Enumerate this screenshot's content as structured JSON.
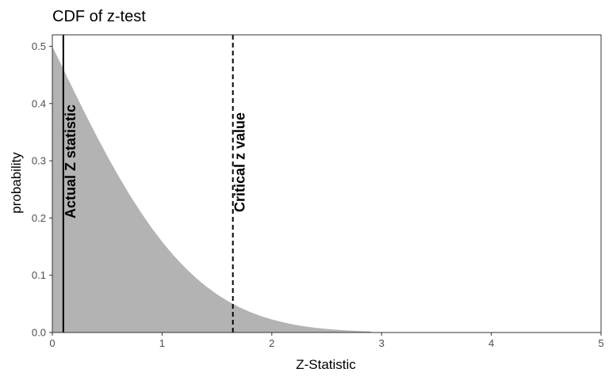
{
  "chart_data": {
    "type": "area",
    "title": "CDF of z-test",
    "xlabel": "Z-Statistic",
    "ylabel": "probability",
    "xlim": [
      0,
      5
    ],
    "ylim": [
      0,
      0.52
    ],
    "x_ticks": [
      0,
      1,
      2,
      3,
      4,
      5
    ],
    "x_tick_labels": [
      "0",
      "1",
      "2",
      "3",
      "4",
      "5"
    ],
    "y_ticks": [
      0,
      0.1,
      0.2,
      0.3,
      0.4,
      0.5
    ],
    "y_tick_labels": [
      "0.0",
      "0.1",
      "0.2",
      "0.3",
      "0.4",
      "0.5"
    ],
    "grid": false,
    "area": {
      "description_of_values": "upper tail probability 1 - Phi(z)",
      "x": [
        0,
        0.1,
        0.2,
        0.3,
        0.4,
        0.5,
        0.6,
        0.7,
        0.8,
        0.9,
        1.0,
        1.1,
        1.2,
        1.3,
        1.4,
        1.5,
        1.6,
        1.7,
        1.8,
        1.9,
        2.0,
        2.1,
        2.2,
        2.3,
        2.4,
        2.5,
        2.6,
        2.7,
        2.8,
        2.9
      ],
      "y": [
        0.5,
        0.4602,
        0.4207,
        0.3821,
        0.3446,
        0.3085,
        0.2743,
        0.242,
        0.2119,
        0.1841,
        0.1587,
        0.1357,
        0.1151,
        0.0968,
        0.0808,
        0.0668,
        0.0548,
        0.0446,
        0.0359,
        0.0287,
        0.0228,
        0.0179,
        0.0139,
        0.0107,
        0.0082,
        0.0062,
        0.0047,
        0.0035,
        0.0026,
        0.0019
      ],
      "fill": "#b3b3b3"
    },
    "vlines": [
      {
        "x": 0.1,
        "style": "solid",
        "label": "Actual Z statistic"
      },
      {
        "x": 1.645,
        "style": "dashed",
        "label": "Critical z value"
      }
    ]
  }
}
